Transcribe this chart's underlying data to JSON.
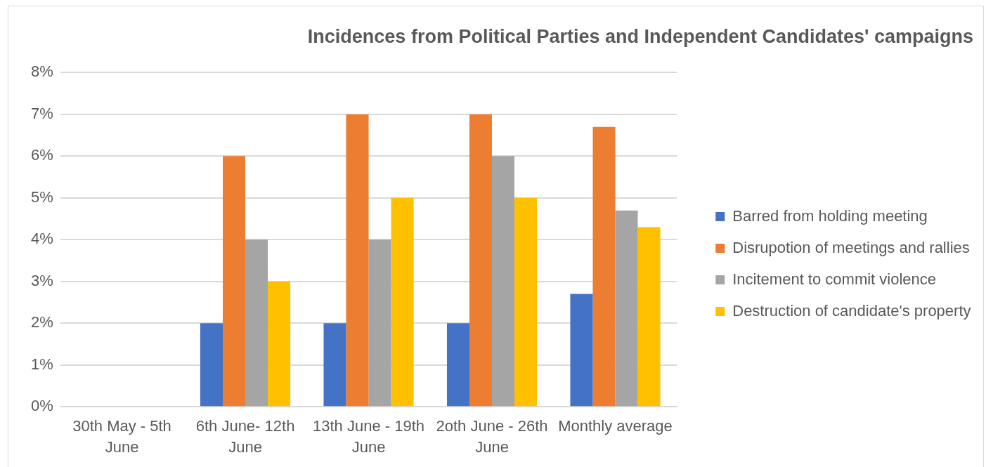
{
  "chart_data": {
    "type": "bar",
    "title": "Incidences from Political Parties and Independent Candidates' campaigns",
    "categories": [
      "30th May - 5th June",
      "6th June- 12th June",
      "13th June - 19th June",
      "2oth June - 26th June",
      "Monthly average"
    ],
    "series": [
      {
        "name": "Barred from holding meeting",
        "color": "#4472c4",
        "values": [
          0,
          2,
          2,
          2,
          2.7
        ]
      },
      {
        "name": "Disrupotion of meetings and rallies",
        "color": "#ed7d31",
        "values": [
          0,
          6,
          7,
          7,
          6.7
        ]
      },
      {
        "name": "Incitement to commit violence",
        "color": "#a5a5a5",
        "values": [
          0,
          4,
          4,
          6,
          4.7
        ]
      },
      {
        "name": "Destruction of candidate's property",
        "color": "#ffc000",
        "values": [
          0,
          3,
          5,
          5,
          4.3
        ]
      }
    ],
    "ylim": [
      0,
      8
    ],
    "yticks": [
      {
        "value": 0,
        "label": "0%"
      },
      {
        "value": 1,
        "label": "1%"
      },
      {
        "value": 2,
        "label": "2%"
      },
      {
        "value": 3,
        "label": "3%"
      },
      {
        "value": 4,
        "label": "4%"
      },
      {
        "value": 5,
        "label": "5%"
      },
      {
        "value": 6,
        "label": "6%"
      },
      {
        "value": 7,
        "label": "7%"
      },
      {
        "value": 8,
        "label": "8%"
      }
    ],
    "grid": "y",
    "legend": "right"
  }
}
